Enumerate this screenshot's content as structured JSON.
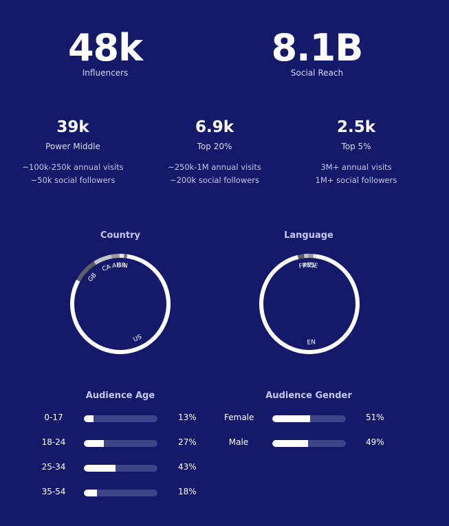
{
  "headline": [
    {
      "value": "48k",
      "label": "Influencers"
    },
    {
      "value": "8.1B",
      "label": "Social Reach"
    }
  ],
  "tiers": [
    {
      "value": "39k",
      "label": "Power Middle",
      "desc1": "~100k-250k annual visits",
      "desc2": "~50k social followers"
    },
    {
      "value": "6.9k",
      "label": "Top 20%",
      "desc1": "~250k-1M annual visits",
      "desc2": "~200k social followers"
    },
    {
      "value": "2.5k",
      "label": "Top 5%",
      "desc1": "3M+ annual visits",
      "desc2": "1M+ social followers"
    }
  ],
  "colors": {
    "background": "#14196a",
    "ring_main": "#ffffff",
    "ring_dark": "#5f5f66",
    "ring_light": "#c4c4c8",
    "bar_track": "#3e4488",
    "bar_fill": "#ffffff"
  },
  "chart_data": [
    {
      "type": "pie",
      "title": "Country",
      "labels": [
        "US",
        "GB",
        "CA",
        "AU",
        "BR",
        "IN"
      ],
      "values": [
        80,
        8,
        6,
        2.5,
        1.5,
        1
      ],
      "slice_colors": [
        "#ffffff",
        "#5f5f66",
        "#c4c4c8",
        "#9a9aa0",
        "#e6e6e8",
        "#7a7a80"
      ]
    },
    {
      "type": "pie",
      "title": "Language",
      "labels": [
        "EN",
        "FR",
        "PT",
        "ES",
        "DE"
      ],
      "values": [
        94,
        2,
        1.5,
        1.5,
        1
      ],
      "slice_colors": [
        "#ffffff",
        "#5f5f66",
        "#c4c4c8",
        "#9a9aa0",
        "#e6e6e8"
      ]
    },
    {
      "type": "bar",
      "title": "Audience Age",
      "categories": [
        "0-17",
        "18-24",
        "25-34",
        "35-54"
      ],
      "values": [
        13,
        27,
        43,
        18
      ],
      "value_labels": [
        "13%",
        "27%",
        "43%",
        "18%"
      ],
      "max": 100
    },
    {
      "type": "bar",
      "title": "Audience Gender",
      "categories": [
        "Female",
        "Male"
      ],
      "values": [
        51,
        49
      ],
      "value_labels": [
        "51%",
        "49%"
      ],
      "max": 100
    }
  ]
}
